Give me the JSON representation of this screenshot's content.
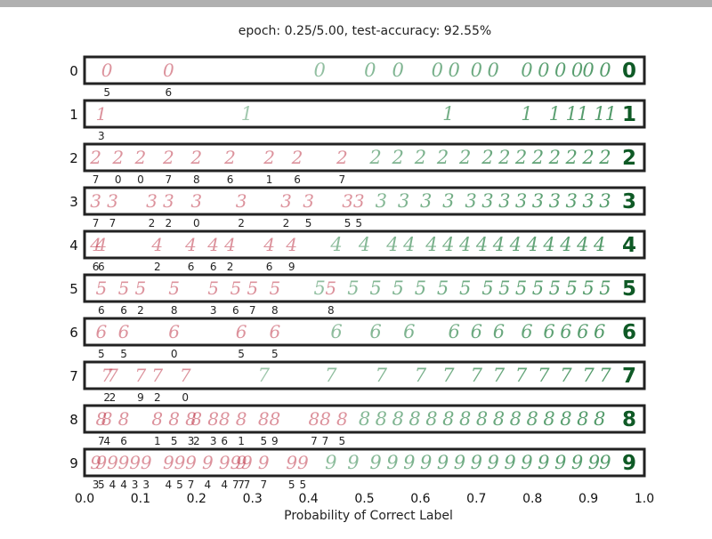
{
  "chart_data": {
    "type": "scatter",
    "title": "epoch: 0.25/5.00, test-accuracy: 92.55%",
    "xlabel": "Probability of Correct Label",
    "xlim": [
      0.0,
      1.0
    ],
    "x_ticks": [
      "0.0",
      "0.1",
      "0.2",
      "0.3",
      "0.4",
      "0.5",
      "0.6",
      "0.7",
      "0.8",
      "0.9",
      "1.0"
    ],
    "colors": {
      "wrong": "#c0394b",
      "correct": "#1b7a3a",
      "frame": "#222222"
    },
    "rows": [
      {
        "label": "0",
        "count_label": "0",
        "misclassified": [
          {
            "x": 0.04,
            "pred": "5"
          },
          {
            "x": 0.15,
            "pred": "6"
          }
        ],
        "correct": [
          0.42,
          0.51,
          0.56,
          0.63,
          0.66,
          0.7,
          0.73,
          0.79,
          0.82,
          0.85,
          0.88,
          0.9,
          0.93
        ]
      },
      {
        "label": "1",
        "count_label": "1",
        "misclassified": [
          {
            "x": 0.03,
            "pred": "3"
          }
        ],
        "correct": [
          0.29,
          0.65,
          0.79,
          0.84,
          0.87,
          0.89,
          0.92,
          0.94
        ]
      },
      {
        "label": "2",
        "count_label": "2",
        "misclassified": [
          {
            "x": 0.02,
            "pred": "7"
          },
          {
            "x": 0.06,
            "pred": "0"
          },
          {
            "x": 0.1,
            "pred": "0"
          },
          {
            "x": 0.15,
            "pred": "7"
          },
          {
            "x": 0.2,
            "pred": "8"
          },
          {
            "x": 0.26,
            "pred": "6"
          },
          {
            "x": 0.33,
            "pred": "1"
          },
          {
            "x": 0.38,
            "pred": "6"
          },
          {
            "x": 0.46,
            "pred": "7"
          }
        ],
        "correct": [
          0.52,
          0.56,
          0.6,
          0.64,
          0.68,
          0.72,
          0.75,
          0.78,
          0.81,
          0.84,
          0.87,
          0.9,
          0.93
        ]
      },
      {
        "label": "3",
        "count_label": "3",
        "misclassified": [
          {
            "x": 0.02,
            "pred": "7"
          },
          {
            "x": 0.05,
            "pred": "7"
          },
          {
            "x": 0.12,
            "pred": "2"
          },
          {
            "x": 0.15,
            "pred": "2"
          },
          {
            "x": 0.2,
            "pred": "0"
          },
          {
            "x": 0.28,
            "pred": "2"
          },
          {
            "x": 0.36,
            "pred": "2"
          },
          {
            "x": 0.4,
            "pred": "5"
          },
          {
            "x": 0.47,
            "pred": "5"
          },
          {
            "x": 0.49,
            "pred": "5"
          }
        ],
        "correct": [
          0.53,
          0.57,
          0.61,
          0.65,
          0.69,
          0.72,
          0.75,
          0.78,
          0.81,
          0.84,
          0.87,
          0.9,
          0.93
        ]
      },
      {
        "label": "4",
        "count_label": "4",
        "misclassified": [
          {
            "x": 0.02,
            "pred": "6"
          },
          {
            "x": 0.03,
            "pred": "6"
          },
          {
            "x": 0.13,
            "pred": "2"
          },
          {
            "x": 0.19,
            "pred": "6"
          },
          {
            "x": 0.23,
            "pred": "6"
          },
          {
            "x": 0.26,
            "pred": "2"
          },
          {
            "x": 0.33,
            "pred": "6"
          },
          {
            "x": 0.37,
            "pred": "9"
          }
        ],
        "correct": [
          0.45,
          0.5,
          0.55,
          0.58,
          0.62,
          0.65,
          0.68,
          0.71,
          0.74,
          0.77,
          0.8,
          0.83,
          0.86,
          0.89,
          0.92
        ]
      },
      {
        "label": "5",
        "count_label": "5",
        "misclassified": [
          {
            "x": 0.03,
            "pred": "6"
          },
          {
            "x": 0.07,
            "pred": "6"
          },
          {
            "x": 0.1,
            "pred": "2"
          },
          {
            "x": 0.16,
            "pred": "8"
          },
          {
            "x": 0.23,
            "pred": "3"
          },
          {
            "x": 0.27,
            "pred": "6"
          },
          {
            "x": 0.3,
            "pred": "7"
          },
          {
            "x": 0.34,
            "pred": "8"
          },
          {
            "x": 0.44,
            "pred": "8"
          }
        ],
        "correct": [
          0.42,
          0.48,
          0.52,
          0.56,
          0.6,
          0.64,
          0.68,
          0.72,
          0.75,
          0.78,
          0.81,
          0.84,
          0.87,
          0.9,
          0.93
        ]
      },
      {
        "label": "6",
        "count_label": "6",
        "misclassified": [
          {
            "x": 0.03,
            "pred": "5"
          },
          {
            "x": 0.07,
            "pred": "5"
          },
          {
            "x": 0.16,
            "pred": "0"
          },
          {
            "x": 0.28,
            "pred": "5"
          },
          {
            "x": 0.34,
            "pred": "5"
          }
        ],
        "correct": [
          0.45,
          0.52,
          0.58,
          0.66,
          0.7,
          0.74,
          0.79,
          0.83,
          0.86,
          0.89,
          0.92
        ]
      },
      {
        "label": "7",
        "count_label": "7",
        "misclassified": [
          {
            "x": 0.04,
            "pred": "2"
          },
          {
            "x": 0.05,
            "pred": "2"
          },
          {
            "x": 0.1,
            "pred": "9"
          },
          {
            "x": 0.13,
            "pred": "2"
          },
          {
            "x": 0.18,
            "pred": "0"
          }
        ],
        "correct": [
          0.32,
          0.44,
          0.53,
          0.6,
          0.65,
          0.7,
          0.74,
          0.78,
          0.82,
          0.86,
          0.9,
          0.93
        ]
      },
      {
        "label": "8",
        "count_label": "8",
        "misclassified": [
          {
            "x": 0.03,
            "pred": "7"
          },
          {
            "x": 0.04,
            "pred": "4"
          },
          {
            "x": 0.07,
            "pred": "6"
          },
          {
            "x": 0.13,
            "pred": "1"
          },
          {
            "x": 0.16,
            "pred": "5"
          },
          {
            "x": 0.19,
            "pred": "3"
          },
          {
            "x": 0.2,
            "pred": "2"
          },
          {
            "x": 0.23,
            "pred": "3"
          },
          {
            "x": 0.25,
            "pred": "6"
          },
          {
            "x": 0.28,
            "pred": "1"
          },
          {
            "x": 0.32,
            "pred": "5"
          },
          {
            "x": 0.34,
            "pred": "9"
          },
          {
            "x": 0.41,
            "pred": "7"
          },
          {
            "x": 0.43,
            "pred": "7"
          },
          {
            "x": 0.46,
            "pred": "5"
          }
        ],
        "correct": [
          0.5,
          0.53,
          0.56,
          0.59,
          0.62,
          0.65,
          0.68,
          0.71,
          0.74,
          0.77,
          0.8,
          0.83,
          0.86,
          0.89,
          0.92
        ]
      },
      {
        "label": "9",
        "count_label": "9",
        "misclassified": [
          {
            "x": 0.02,
            "pred": "3"
          },
          {
            "x": 0.03,
            "pred": "5"
          },
          {
            "x": 0.05,
            "pred": "4"
          },
          {
            "x": 0.07,
            "pred": "4"
          },
          {
            "x": 0.09,
            "pred": "3"
          },
          {
            "x": 0.11,
            "pred": "3"
          },
          {
            "x": 0.15,
            "pred": "4"
          },
          {
            "x": 0.17,
            "pred": "5"
          },
          {
            "x": 0.19,
            "pred": "7"
          },
          {
            "x": 0.22,
            "pred": "4"
          },
          {
            "x": 0.25,
            "pred": "4"
          },
          {
            "x": 0.27,
            "pred": "7"
          },
          {
            "x": 0.28,
            "pred": "7"
          },
          {
            "x": 0.29,
            "pred": "7"
          },
          {
            "x": 0.32,
            "pred": "7"
          },
          {
            "x": 0.37,
            "pred": "5"
          },
          {
            "x": 0.39,
            "pred": "5"
          }
        ],
        "correct": [
          0.44,
          0.48,
          0.52,
          0.55,
          0.58,
          0.61,
          0.64,
          0.67,
          0.7,
          0.73,
          0.76,
          0.79,
          0.82,
          0.85,
          0.88,
          0.91,
          0.93
        ]
      }
    ]
  }
}
